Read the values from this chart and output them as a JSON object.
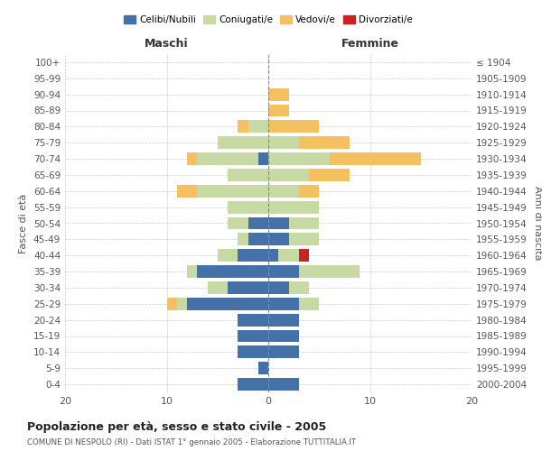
{
  "age_groups": [
    "100+",
    "95-99",
    "90-94",
    "85-89",
    "80-84",
    "75-79",
    "70-74",
    "65-69",
    "60-64",
    "55-59",
    "50-54",
    "45-49",
    "40-44",
    "35-39",
    "30-34",
    "25-29",
    "20-24",
    "15-19",
    "10-14",
    "5-9",
    "0-4"
  ],
  "birth_years": [
    "≤ 1904",
    "1905-1909",
    "1910-1914",
    "1915-1919",
    "1920-1924",
    "1925-1929",
    "1930-1934",
    "1935-1939",
    "1940-1944",
    "1945-1949",
    "1950-1954",
    "1955-1959",
    "1960-1964",
    "1965-1969",
    "1970-1974",
    "1975-1979",
    "1980-1984",
    "1985-1989",
    "1990-1994",
    "1995-1999",
    "2000-2004"
  ],
  "maschi": {
    "celibi": [
      0,
      0,
      0,
      0,
      0,
      0,
      1,
      0,
      0,
      0,
      2,
      2,
      3,
      7,
      4,
      8,
      3,
      3,
      3,
      1,
      3
    ],
    "coniugati": [
      0,
      0,
      0,
      0,
      2,
      5,
      6,
      4,
      7,
      4,
      2,
      1,
      2,
      1,
      2,
      1,
      0,
      0,
      0,
      0,
      0
    ],
    "vedovi": [
      0,
      0,
      0,
      0,
      1,
      0,
      1,
      0,
      2,
      0,
      0,
      0,
      0,
      0,
      0,
      1,
      0,
      0,
      0,
      0,
      0
    ],
    "divorziati": [
      0,
      0,
      0,
      0,
      0,
      0,
      0,
      0,
      0,
      0,
      0,
      0,
      0,
      0,
      0,
      0,
      0,
      0,
      0,
      0,
      0
    ]
  },
  "femmine": {
    "nubili": [
      0,
      0,
      0,
      0,
      0,
      0,
      0,
      0,
      0,
      0,
      2,
      2,
      1,
      3,
      2,
      3,
      3,
      3,
      3,
      0,
      3
    ],
    "coniugate": [
      0,
      0,
      0,
      0,
      0,
      3,
      6,
      4,
      3,
      5,
      3,
      3,
      2,
      6,
      2,
      2,
      0,
      0,
      0,
      0,
      0
    ],
    "vedove": [
      0,
      0,
      2,
      2,
      5,
      5,
      9,
      4,
      2,
      0,
      0,
      0,
      0,
      0,
      0,
      0,
      0,
      0,
      0,
      0,
      0
    ],
    "divorziate": [
      0,
      0,
      0,
      0,
      0,
      0,
      0,
      0,
      0,
      0,
      0,
      0,
      1,
      0,
      0,
      0,
      0,
      0,
      0,
      0,
      0
    ]
  },
  "colors": {
    "celibi_nubili": "#4472a8",
    "coniugati": "#c8daa4",
    "vedovi": "#f5c060",
    "divorziati": "#cc2222"
  },
  "xlim": 20,
  "title": "Popolazione per età, sesso e stato civile - 2005",
  "subtitle": "COMUNE DI NESPOLO (RI) - Dati ISTAT 1° gennaio 2005 - Elaborazione TUTTITALIA.IT",
  "ylabel_left": "Fasce di età",
  "ylabel_right": "Anni di nascita",
  "xlabel_maschi": "Maschi",
  "xlabel_femmine": "Femmine",
  "background_color": "#ffffff",
  "grid_color": "#cccccc"
}
